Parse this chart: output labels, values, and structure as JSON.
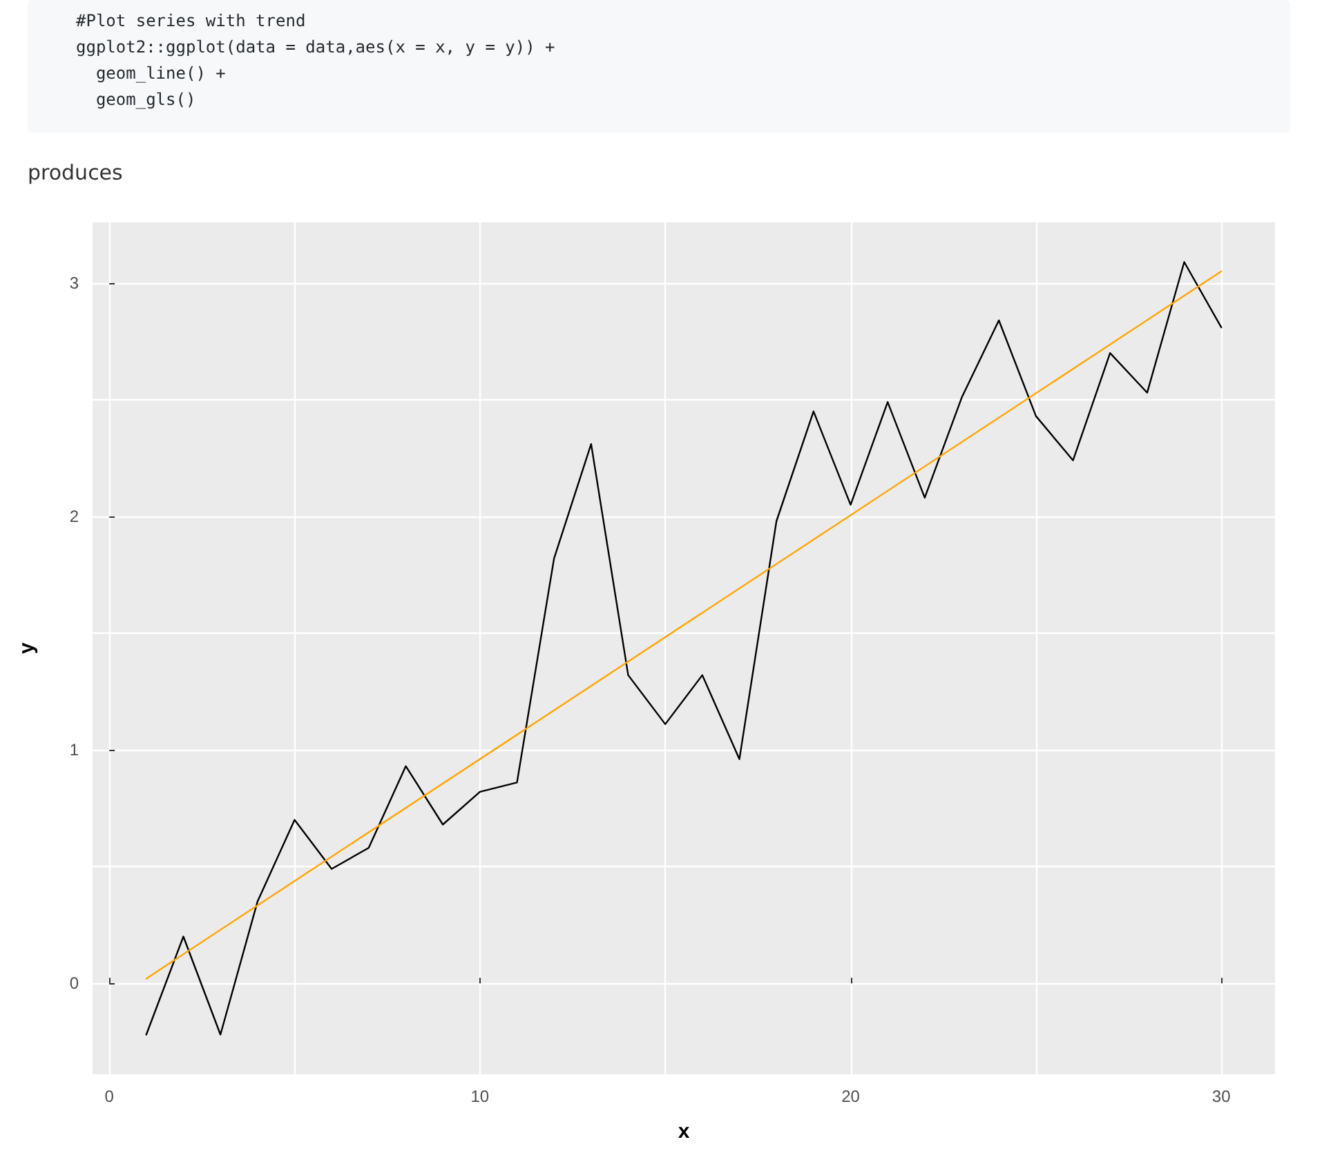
{
  "chart_data": {
    "type": "line",
    "annotations": [
      "#Plot series with trend",
      "ggplot2::ggplot(data = data,aes(x = x, y = y)) +",
      "  geom_line() +",
      "  geom_gls()",
      "produces"
    ],
    "xlabel": "x",
    "ylabel": "y",
    "series": [
      {
        "color": "#000000",
        "x": [
          1,
          2,
          3,
          4,
          5,
          6,
          7,
          8,
          9,
          10,
          11,
          12,
          13,
          14,
          15,
          16,
          17,
          18,
          19,
          20,
          21,
          22,
          23,
          24,
          25,
          26,
          27,
          28,
          29,
          30
        ],
        "values": [
          -0.22,
          0.2,
          -0.22,
          0.35,
          0.7,
          0.49,
          0.58,
          0.93,
          0.68,
          0.82,
          0.86,
          1.82,
          2.31,
          1.32,
          1.11,
          1.32,
          0.96,
          1.98,
          2.45,
          2.05,
          2.49,
          2.08,
          2.51,
          2.84,
          2.43,
          2.24,
          2.7,
          2.53,
          3.09,
          2.81
        ]
      },
      {
        "color": "#ffa500",
        "x": [
          1,
          30
        ],
        "values": [
          0.02,
          3.05
        ]
      }
    ],
    "xlim": [
      -0.45,
      31.45
    ],
    "ylim": [
      -0.39,
      3.26
    ],
    "xticks": [
      0,
      {
        "value": 5,
        "label": null
      },
      10,
      {
        "value": 15,
        "label": null
      },
      20,
      {
        "value": 25,
        "label": null
      },
      30
    ],
    "yticks": [
      0,
      {
        "value": 0.5,
        "label": null
      },
      1,
      {
        "value": 1.5,
        "label": null
      },
      2,
      {
        "value": 2.5,
        "label": null
      },
      3
    ],
    "grid": true,
    "marker": "none",
    "line_style": "solid"
  }
}
